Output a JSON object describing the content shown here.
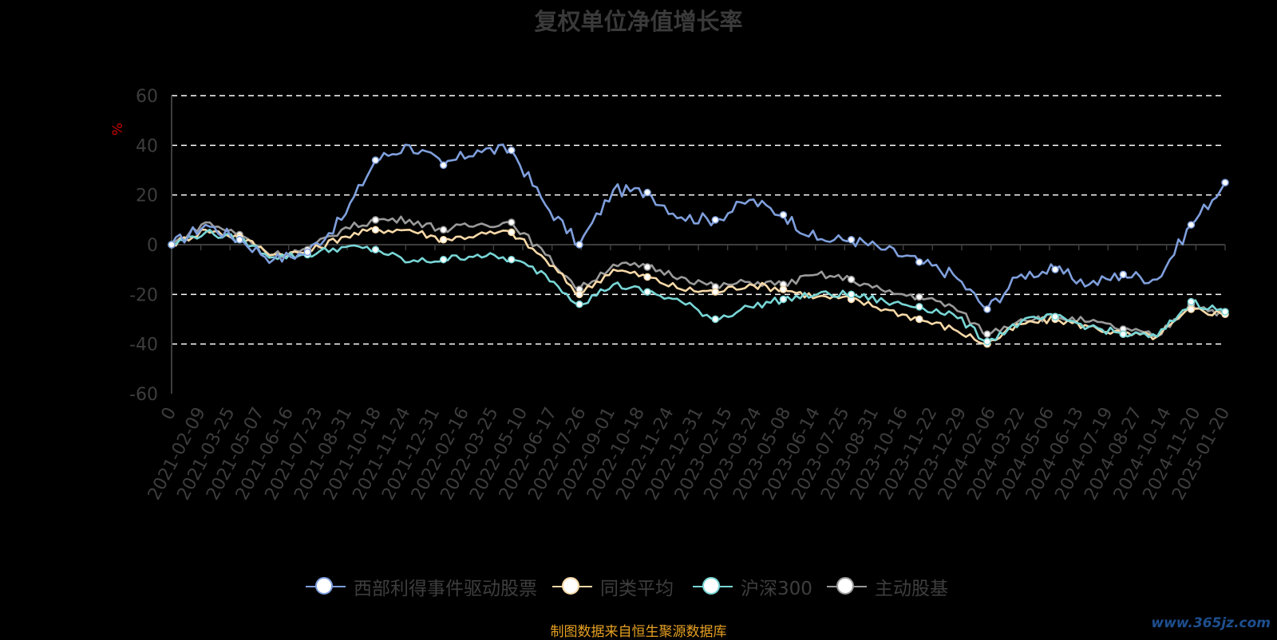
{
  "title": "复权单位净值增长率",
  "source_note": "制图数据来自恒生聚源数据库",
  "watermark": "www.365jz.com",
  "colors": {
    "fund": "#7f9fdc",
    "peer_avg": "#f7d9a8",
    "hs300": "#79d6d6",
    "active_equity": "#9a9a9a",
    "grid": "#ffffff",
    "axis": "#3d3d3d",
    "unit": "#cc0000",
    "source": "#e6a022"
  },
  "legend": [
    {
      "name": "西部利得事件驱动股票",
      "color_key": "fund"
    },
    {
      "name": "同类平均",
      "color_key": "peer_avg"
    },
    {
      "name": "沪深300",
      "color_key": "hs300"
    },
    {
      "name": "主动股基",
      "color_key": "active_equity"
    }
  ],
  "chart_data": {
    "type": "line",
    "ylabel": "%",
    "ylim": [
      -60,
      60
    ],
    "yticks": [
      60,
      40,
      20,
      0,
      -20,
      -40,
      -60
    ],
    "grid": "dashed horizontal",
    "legend_position": "bottom",
    "x_ticks": [
      "0",
      "2021-02-09",
      "2021-03-25",
      "2021-05-07",
      "2021-06-16",
      "2021-07-23",
      "2021-08-31",
      "2021-10-18",
      "2021-11-24",
      "2021-12-31",
      "2022-02-16",
      "2022-03-25",
      "2022-05-10",
      "2022-06-17",
      "2022-07-26",
      "2022-09-01",
      "2022-10-18",
      "2022-11-24",
      "2022-12-31",
      "2023-02-15",
      "2023-03-24",
      "2023-05-08",
      "2023-06-14",
      "2023-07-25",
      "2023-08-31",
      "2023-10-16",
      "2023-11-22",
      "2023-12-29",
      "2024-02-06",
      "2024-03-22",
      "2024-05-06",
      "2024-06-13",
      "2024-07-19",
      "2024-08-27",
      "2024-10-14",
      "2024-11-20",
      "2025-01-20"
    ],
    "series": [
      {
        "name": "西部利得事件驱动股票",
        "color_key": "fund",
        "values": [
          0,
          8,
          2,
          -6,
          -3,
          10,
          34,
          40,
          32,
          38,
          38,
          16,
          0,
          22,
          21,
          11,
          10,
          18,
          12,
          2,
          2,
          -2,
          -7,
          -12,
          -26,
          -12,
          -10,
          -16,
          -12,
          -14,
          8,
          25
        ]
      },
      {
        "name": "同类平均",
        "color_key": "peer_avg",
        "values": [
          0,
          6,
          3,
          -4,
          -3,
          3,
          6,
          6,
          2,
          4,
          5,
          -6,
          -20,
          -10,
          -13,
          -18,
          -19,
          -16,
          -18,
          -21,
          -22,
          -26,
          -30,
          -34,
          -40,
          -32,
          -30,
          -33,
          -36,
          -37,
          -26,
          -28
        ]
      },
      {
        "name": "沪深300",
        "color_key": "hs300",
        "values": [
          0,
          5,
          2,
          -5,
          -4,
          -1,
          -2,
          -7,
          -6,
          -4,
          -6,
          -12,
          -24,
          -16,
          -19,
          -23,
          -30,
          -25,
          -22,
          -20,
          -20,
          -23,
          -25,
          -28,
          -39,
          -31,
          -29,
          -33,
          -36,
          -37,
          -23,
          -27
        ]
      },
      {
        "name": "主动股基",
        "color_key": "active_equity",
        "values": [
          0,
          9,
          4,
          -4,
          -2,
          6,
          10,
          10,
          6,
          8,
          9,
          -4,
          -18,
          -8,
          -9,
          -13,
          -17,
          -15,
          -16,
          -12,
          -14,
          -19,
          -21,
          -25,
          -36,
          -30,
          -29,
          -31,
          -34,
          -37,
          -24,
          -28
        ]
      }
    ]
  }
}
